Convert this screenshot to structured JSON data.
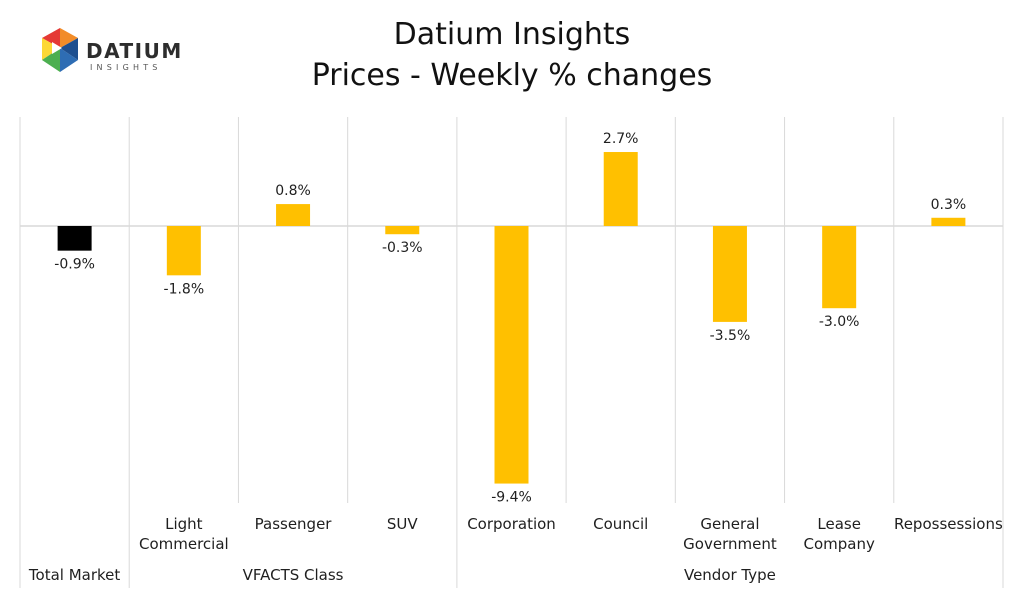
{
  "header": {
    "logo_text": "DATIUM",
    "logo_subtext": "INSIGHTS",
    "title_line1": "Datium Insights",
    "title_line2": "Prices - Weekly % changes"
  },
  "colors": {
    "highlight_bar": "#000000",
    "bar": "#FFC000",
    "gridline": "#D9D9D9",
    "logo_blue": "#2E6DB4",
    "logo_orange": "#F28C28",
    "logo_green": "#4CAF50",
    "logo_red": "#E53935",
    "logo_yellow": "#FDD835"
  },
  "chart_data": {
    "type": "bar",
    "title": "Prices - Weekly % changes",
    "categories": [
      "Total Market",
      "Light Commercial",
      "Passenger",
      "SUV",
      "Corporation",
      "Council",
      "General Government",
      "Lease Company",
      "Repossessions"
    ],
    "category_label_lines": [
      [],
      [
        "Light",
        "Commercial"
      ],
      [
        "Passenger"
      ],
      [
        "SUV"
      ],
      [
        "Corporation"
      ],
      [
        "Council"
      ],
      [
        "General",
        "Government"
      ],
      [
        "Lease",
        "Company"
      ],
      [
        "Repossessions"
      ]
    ],
    "values": [
      -0.9,
      -1.8,
      0.8,
      -0.3,
      -9.4,
      2.7,
      -3.5,
      -3.0,
      0.3
    ],
    "value_labels": [
      "-0.9%",
      "-1.8%",
      "0.8%",
      "-0.3%",
      "-9.4%",
      "2.7%",
      "-3.5%",
      "-3.0%",
      "0.3%"
    ],
    "groups": [
      {
        "label": "Total Market",
        "members": [
          "Total Market"
        ]
      },
      {
        "label": "VFACTS Class",
        "members": [
          "Light Commercial",
          "Passenger",
          "SUV"
        ]
      },
      {
        "label": "Vendor Type",
        "members": [
          "Corporation",
          "Council",
          "General Government",
          "Lease Company",
          "Repossessions"
        ]
      }
    ],
    "highlight_category": "Total Market",
    "ylim": [
      -9.4,
      4.0
    ],
    "xlabel": "",
    "ylabel": "",
    "legend": "none",
    "grid": "vertical separators between categories"
  }
}
